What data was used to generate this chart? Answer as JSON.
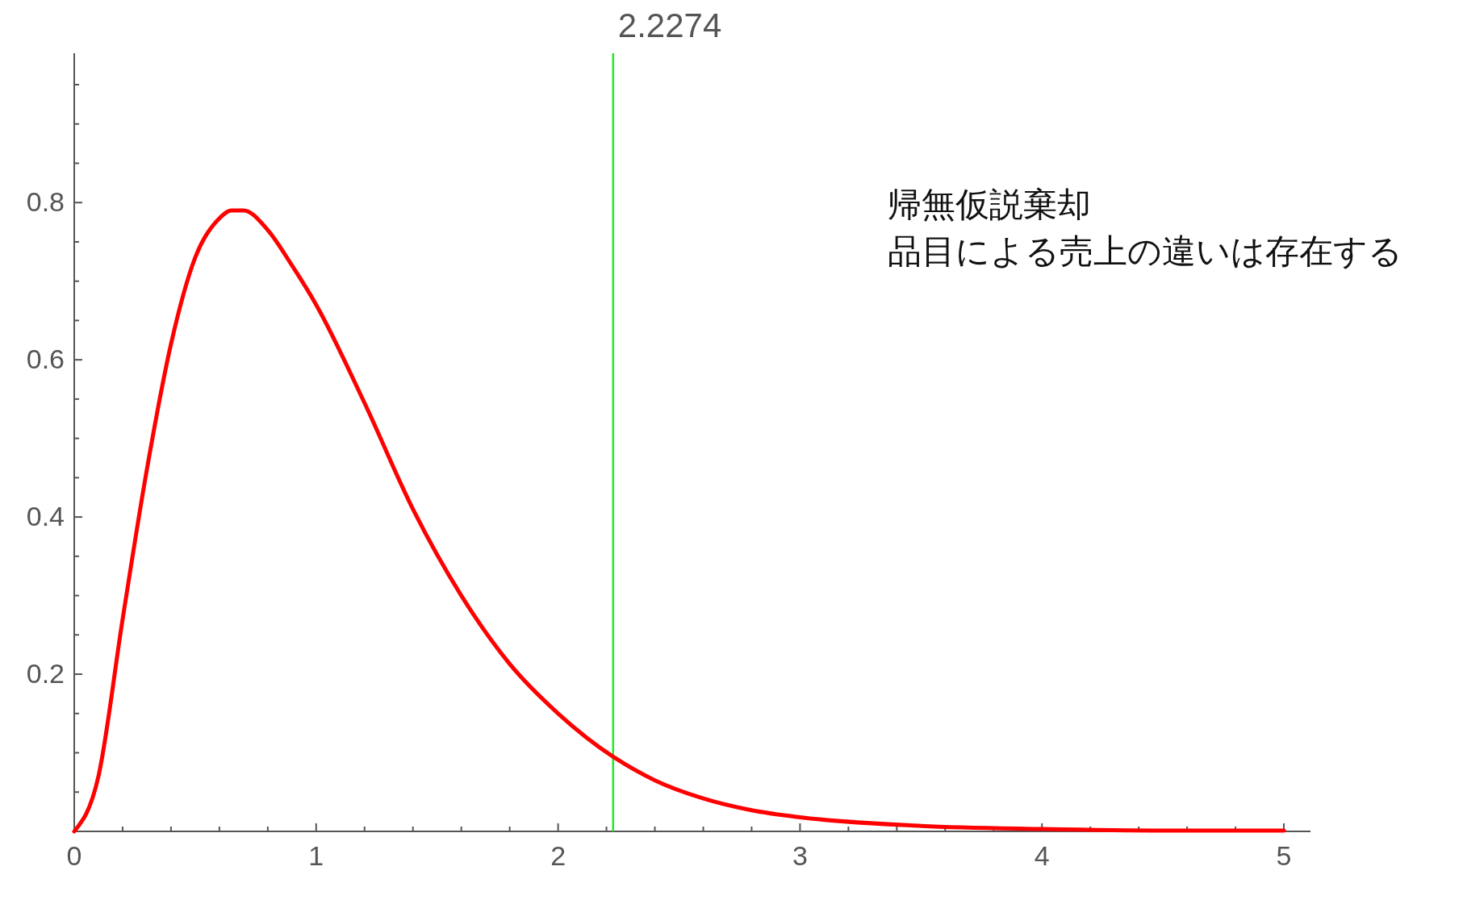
{
  "chart_data": {
    "type": "line",
    "x": [
      0,
      0.1,
      0.2,
      0.3,
      0.4,
      0.5,
      0.6,
      0.65,
      0.7,
      0.8,
      0.9,
      1.0,
      1.2,
      1.4,
      1.6,
      1.8,
      2.0,
      2.2274,
      2.4,
      2.6,
      2.8,
      3.0,
      3.5,
      4.0,
      4.5,
      5.0
    ],
    "series": [
      {
        "color": "#ff0000",
        "values": [
          0,
          0.07,
          0.27,
          0.46,
          0.62,
          0.73,
          0.78,
          0.79,
          0.79,
          0.765,
          0.72,
          0.67,
          0.545,
          0.41,
          0.3,
          0.213,
          0.15,
          0.095,
          0.065,
          0.042,
          0.027,
          0.018,
          0.007,
          0.003,
          0.001,
          0.001
        ]
      }
    ],
    "xlim": [
      0,
      5.11
    ],
    "ylim": [
      0,
      0.99
    ],
    "xticks": [
      0,
      {
        "value": 0.2,
        "label": null
      },
      {
        "value": 0.4,
        "label": null
      },
      {
        "value": 0.6,
        "label": null
      },
      {
        "value": 0.8,
        "label": null
      },
      1,
      {
        "value": 1.2,
        "label": null
      },
      {
        "value": 1.4,
        "label": null
      },
      {
        "value": 1.6,
        "label": null
      },
      {
        "value": 1.8,
        "label": null
      },
      2,
      {
        "value": 2.2,
        "label": null
      },
      {
        "value": 2.4,
        "label": null
      },
      {
        "value": 2.6,
        "label": null
      },
      {
        "value": 2.8,
        "label": null
      },
      3,
      {
        "value": 3.2,
        "label": null
      },
      {
        "value": 3.4,
        "label": null
      },
      {
        "value": 3.6,
        "label": null
      },
      {
        "value": 3.8,
        "label": null
      },
      4,
      {
        "value": 4.2,
        "label": null
      },
      {
        "value": 4.4,
        "label": null
      },
      {
        "value": 4.6,
        "label": null
      },
      {
        "value": 4.8,
        "label": null
      },
      5
    ],
    "yticks": [
      {
        "value": 0.05,
        "label": null
      },
      {
        "value": 0.1,
        "label": null
      },
      {
        "value": 0.15,
        "label": null
      },
      0.2,
      {
        "value": 0.25,
        "label": null
      },
      {
        "value": 0.3,
        "label": null
      },
      {
        "value": 0.35,
        "label": null
      },
      0.4,
      {
        "value": 0.45,
        "label": null
      },
      {
        "value": 0.5,
        "label": null
      },
      {
        "value": 0.55,
        "label": null
      },
      0.6,
      {
        "value": 0.65,
        "label": null
      },
      {
        "value": 0.7,
        "label": null
      },
      {
        "value": 0.75,
        "label": null
      },
      0.8,
      {
        "value": 0.85,
        "label": null
      },
      {
        "value": 0.9,
        "label": null
      },
      {
        "value": 0.95,
        "label": null
      }
    ],
    "ref_lines": [
      {
        "axis": "x",
        "value": 2.2274,
        "label": "2.2274",
        "color": "#22ee22"
      }
    ],
    "annotations": [
      "帰無仮説棄却",
      "品目による売上の違いは存在する"
    ],
    "grid": false,
    "marker": "none",
    "line_style": "solid"
  }
}
